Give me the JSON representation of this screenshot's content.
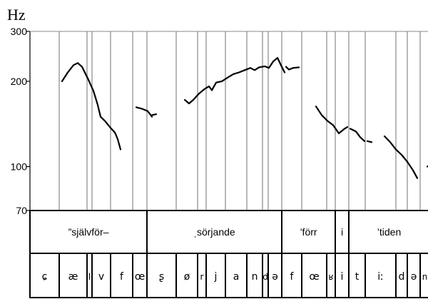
{
  "unit_label": "Hz",
  "chart_data": {
    "type": "line",
    "ylabel": "Hz",
    "y_scale": "log",
    "ylim": [
      70,
      300
    ],
    "y_ticks": [
      70,
      100,
      200,
      300
    ],
    "y_tick_labels": [
      "70",
      "100",
      "200",
      "300"
    ],
    "words": [
      "”självför–",
      "ˌsörjande",
      "’förr",
      "i",
      "’tiden"
    ],
    "phones": [
      "ɕ",
      "æ",
      "l",
      "v",
      "f",
      "œ",
      "ʂ",
      "ø",
      "r",
      "j",
      "a",
      "n",
      "d",
      "ə",
      "f",
      "œ",
      "ʁ",
      "i",
      "t",
      "iː",
      "d",
      "ə",
      "n"
    ],
    "series": [
      {
        "values": [
          [
            0.0,
            200
          ],
          [
            0.02,
            215
          ],
          [
            0.04,
            228
          ],
          [
            0.055,
            232
          ],
          [
            0.07,
            225
          ],
          [
            0.09,
            205
          ],
          [
            0.11,
            185
          ],
          [
            0.125,
            165
          ],
          [
            0.135,
            150
          ]
        ]
      },
      {
        "values": [
          [
            0.135,
            150
          ],
          [
            0.15,
            145
          ],
          [
            0.17,
            137
          ],
          [
            0.185,
            132
          ],
          [
            0.195,
            125
          ],
          [
            0.205,
            115
          ]
        ]
      },
      {
        "values": [
          [
            0.26,
            162
          ],
          [
            0.28,
            160
          ],
          [
            0.3,
            157
          ],
          [
            0.315,
            150
          ]
        ]
      },
      {
        "values": [
          [
            0.315,
            152
          ],
          [
            0.33,
            153
          ]
        ]
      },
      {
        "values": [
          [
            0.43,
            172
          ],
          [
            0.445,
            167
          ],
          [
            0.46,
            172
          ],
          [
            0.48,
            181
          ],
          [
            0.5,
            188
          ],
          [
            0.515,
            192
          ],
          [
            0.525,
            186
          ]
        ]
      },
      {
        "values": [
          [
            0.525,
            186
          ],
          [
            0.54,
            198
          ],
          [
            0.56,
            200
          ],
          [
            0.58,
            206
          ],
          [
            0.6,
            212
          ],
          [
            0.62,
            215
          ],
          [
            0.64,
            219
          ],
          [
            0.66,
            223
          ],
          [
            0.675,
            219
          ],
          [
            0.69,
            224
          ],
          [
            0.71,
            226
          ],
          [
            0.725,
            223
          ],
          [
            0.74,
            235
          ],
          [
            0.755,
            242
          ],
          [
            0.77,
            225
          ],
          [
            0.78,
            215
          ]
        ]
      },
      {
        "values": [
          [
            0.785,
            225
          ],
          [
            0.795,
            220
          ],
          [
            0.81,
            223
          ],
          [
            0.83,
            224
          ]
        ]
      },
      {
        "values": [
          [
            0.89,
            163
          ],
          [
            0.91,
            152
          ],
          [
            0.93,
            145
          ],
          [
            0.95,
            140
          ],
          [
            0.97,
            131
          ],
          [
            0.99,
            136
          ],
          [
            1.0,
            138
          ]
        ]
      },
      {
        "values": [
          [
            1.01,
            136
          ],
          [
            1.03,
            133
          ],
          [
            1.045,
            127
          ],
          [
            1.06,
            123
          ]
        ]
      },
      {
        "values": [
          [
            1.07,
            123
          ],
          [
            1.085,
            122
          ]
        ]
      },
      {
        "values": [
          [
            1.13,
            128
          ],
          [
            1.15,
            122
          ],
          [
            1.17,
            115
          ],
          [
            1.19,
            110
          ],
          [
            1.21,
            104
          ],
          [
            1.23,
            97
          ],
          [
            1.245,
            91
          ]
        ]
      },
      {
        "values": [
          [
            1.28,
            100
          ],
          [
            1.3,
            103
          ],
          [
            1.32,
            101
          ],
          [
            1.34,
            102
          ],
          [
            1.36,
            101
          ]
        ]
      }
    ]
  }
}
